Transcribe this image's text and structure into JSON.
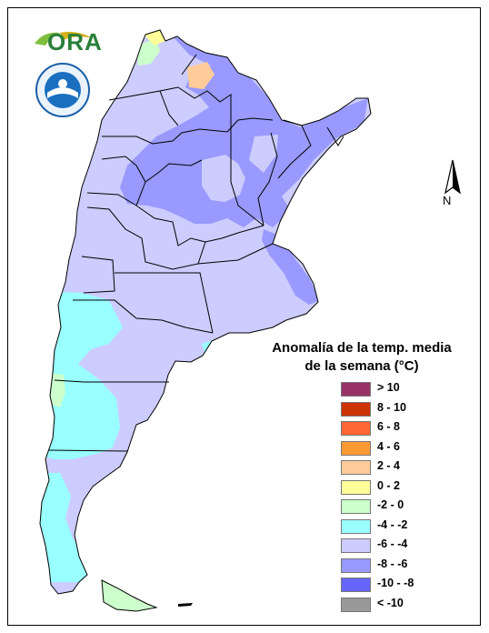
{
  "logos": {
    "ora_text": "ORA",
    "seal_text": "SERVICIO METEOROLOGICO NACIONAL ARGENTINA"
  },
  "compass": {
    "label": "N"
  },
  "legend": {
    "title_line1": "Anomalía de la temp. media",
    "title_line2": "de la semana (°C)",
    "items": [
      {
        "label": "> 10",
        "color": "#993366"
      },
      {
        "label": "8 - 10",
        "color": "#cc3300"
      },
      {
        "label": "6 - 8",
        "color": "#ff6633"
      },
      {
        "label": "4 - 6",
        "color": "#ff9933"
      },
      {
        "label": "2 - 4",
        "color": "#ffcc99"
      },
      {
        "label": "0 - 2",
        "color": "#ffff99"
      },
      {
        "label": "-2 - 0",
        "color": "#ccffcc"
      },
      {
        "label": "-4 - -2",
        "color": "#99ffff"
      },
      {
        "label": "-6 - -4",
        "color": "#ccccff"
      },
      {
        "label": "-8 - -6",
        "color": "#9999ff"
      },
      {
        "label": "-10 - -8",
        "color": "#6666ff"
      },
      {
        "label": "< -10",
        "color": "#999999"
      }
    ]
  },
  "map_colors": {
    "base": "#ccccff",
    "cold": "#9999ff",
    "cyan": "#99ffff",
    "green": "#ccffcc",
    "yellow": "#ffff99",
    "peach": "#ffcc99",
    "border": "#000000"
  }
}
